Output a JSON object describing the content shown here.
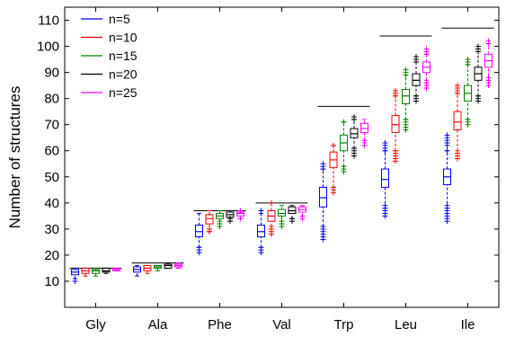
{
  "chart_data": {
    "type": "box",
    "ylabel": "Number of structures",
    "xlabel": "",
    "title": "",
    "ylim": [
      0,
      115
    ],
    "yticks": [
      10,
      20,
      30,
      40,
      50,
      60,
      70,
      80,
      90,
      100,
      110
    ],
    "grid": false,
    "legend_position": "top-left",
    "categories": [
      "Gly",
      "Ala",
      "Phe",
      "Val",
      "Trp",
      "Leu",
      "Ile"
    ],
    "series": [
      {
        "name": "n=5",
        "color": "#0000ff",
        "boxes": [
          {
            "whisker_low": 11,
            "q1": 12.5,
            "median": 13.5,
            "q3": 14.5,
            "whisker_high": 15,
            "outliers": [
              10
            ]
          },
          {
            "whisker_low": 12,
            "q1": 13.5,
            "median": 14.5,
            "q3": 15.5,
            "whisker_high": 16,
            "outliers": []
          },
          {
            "whisker_low": 23,
            "q1": 27,
            "median": 29,
            "q3": 31.5,
            "whisker_high": 36,
            "outliers": [
              21,
              22,
              23
            ]
          },
          {
            "whisker_low": 23,
            "q1": 27,
            "median": 29,
            "q3": 31.5,
            "whisker_high": 36,
            "outliers": [
              21,
              22,
              23,
              37
            ]
          },
          {
            "whisker_low": 31,
            "q1": 38.5,
            "median": 42,
            "q3": 46,
            "whisker_high": 53,
            "outliers": [
              26,
              27,
              28,
              29,
              30,
              31,
              53,
              54,
              55
            ]
          },
          {
            "whisker_low": 38,
            "q1": 46,
            "median": 49,
            "q3": 53,
            "whisker_high": 60,
            "outliers": [
              35,
              36,
              37,
              38,
              39,
              60,
              61,
              62,
              63
            ]
          },
          {
            "whisker_low": 38,
            "q1": 47,
            "median": 50,
            "q3": 53,
            "whisker_high": 60,
            "outliers": [
              33,
              34,
              35,
              36,
              37,
              38,
              39,
              60,
              62,
              63,
              64,
              65,
              66
            ]
          }
        ]
      },
      {
        "name": "n=10",
        "color": "#ff0000",
        "boxes": [
          {
            "whisker_low": 12,
            "q1": 13,
            "median": 14,
            "q3": 15,
            "whisker_high": 15,
            "outliers": []
          },
          {
            "whisker_low": 13,
            "q1": 14,
            "median": 15,
            "q3": 16,
            "whisker_high": 16,
            "outliers": []
          },
          {
            "whisker_low": 29,
            "q1": 32,
            "median": 34,
            "q3": 35.5,
            "whisker_high": 37,
            "outliers": [
              29,
              30
            ]
          },
          {
            "whisker_low": 31,
            "q1": 33,
            "median": 35,
            "q3": 37,
            "whisker_high": 40,
            "outliers": [
              28,
              29,
              30,
              40
            ]
          },
          {
            "whisker_low": 46,
            "q1": 53.5,
            "median": 56.5,
            "q3": 59.5,
            "whisker_high": 62,
            "outliers": [
              44,
              45,
              46,
              62
            ]
          },
          {
            "whisker_low": 60,
            "q1": 67,
            "median": 70,
            "q3": 73.5,
            "whisker_high": 81,
            "outliers": [
              56,
              57,
              58,
              59,
              60,
              81,
              82,
              83
            ]
          },
          {
            "whisker_low": 60,
            "q1": 68,
            "median": 71,
            "q3": 75,
            "whisker_high": 82,
            "outliers": [
              57,
              58,
              59,
              82,
              83,
              84,
              85
            ]
          }
        ]
      },
      {
        "name": "n=15",
        "color": "#008000",
        "boxes": [
          {
            "whisker_low": 12,
            "q1": 13,
            "median": 14,
            "q3": 14.5,
            "whisker_high": 15,
            "outliers": []
          },
          {
            "whisker_low": 14,
            "q1": 15,
            "median": 15.5,
            "q3": 16,
            "whisker_high": 16,
            "outliers": []
          },
          {
            "whisker_low": 32,
            "q1": 34,
            "median": 35,
            "q3": 36,
            "whisker_high": 37,
            "outliers": [
              31,
              32,
              33
            ]
          },
          {
            "whisker_low": 32,
            "q1": 35,
            "median": 36,
            "q3": 37.5,
            "whisker_high": 39,
            "outliers": [
              31,
              32,
              33
            ]
          },
          {
            "whisker_low": 54,
            "q1": 60,
            "median": 63,
            "q3": 66,
            "whisker_high": 71,
            "outliers": [
              52,
              53,
              54,
              71
            ]
          },
          {
            "whisker_low": 72,
            "q1": 78,
            "median": 81,
            "q3": 83.5,
            "whisker_high": 89,
            "outliers": [
              68,
              69,
              70,
              71,
              72,
              89,
              90,
              91
            ]
          },
          {
            "whisker_low": 72,
            "q1": 79,
            "median": 82,
            "q3": 85,
            "whisker_high": 93,
            "outliers": [
              70,
              71,
              72,
              93,
              94,
              95
            ]
          }
        ]
      },
      {
        "name": "n=20",
        "color": "#000000",
        "boxes": [
          {
            "whisker_low": 13,
            "q1": 13.5,
            "median": 14,
            "q3": 15,
            "whisker_high": 15,
            "outliers": []
          },
          {
            "whisker_low": 15,
            "q1": 15,
            "median": 16,
            "q3": 16.5,
            "whisker_high": 17,
            "outliers": []
          },
          {
            "whisker_low": 33,
            "q1": 34.5,
            "median": 35.5,
            "q3": 36.5,
            "whisker_high": 37,
            "outliers": [
              33,
              34
            ]
          },
          {
            "whisker_low": 34,
            "q1": 36,
            "median": 37,
            "q3": 38.5,
            "whisker_high": 39,
            "outliers": [
              33,
              34
            ]
          },
          {
            "whisker_low": 61,
            "q1": 65,
            "median": 66.5,
            "q3": 68.5,
            "whisker_high": 72,
            "outliers": [
              58,
              59,
              60,
              61,
              72,
              73
            ]
          },
          {
            "whisker_low": 81,
            "q1": 85,
            "median": 87,
            "q3": 89.5,
            "whisker_high": 94,
            "outliers": [
              79,
              80,
              81,
              94,
              95,
              96
            ]
          },
          {
            "whisker_low": 81,
            "q1": 87,
            "median": 89.5,
            "q3": 92,
            "whisker_high": 98,
            "outliers": [
              79,
              80,
              81,
              98,
              99,
              100
            ]
          }
        ]
      },
      {
        "name": "n=25",
        "color": "#ff00ff",
        "boxes": [
          {
            "whisker_low": 14,
            "q1": 14,
            "median": 14.5,
            "q3": 15,
            "whisker_high": 15,
            "outliers": []
          },
          {
            "whisker_low": 15,
            "q1": 15.5,
            "median": 16,
            "q3": 16.5,
            "whisker_high": 17,
            "outliers": []
          },
          {
            "whisker_low": 34,
            "q1": 35,
            "median": 36,
            "q3": 36.5,
            "whisker_high": 37,
            "outliers": [
              34,
              37
            ]
          },
          {
            "whisker_low": 35,
            "q1": 36.5,
            "median": 37.5,
            "q3": 38.5,
            "whisker_high": 39,
            "outliers": [
              34,
              35
            ]
          },
          {
            "whisker_low": 64,
            "q1": 67,
            "median": 68.5,
            "q3": 70.5,
            "whisker_high": 72,
            "outliers": [
              62,
              63,
              64
            ]
          },
          {
            "whisker_low": 87,
            "q1": 90,
            "median": 92,
            "q3": 94,
            "whisker_high": 97,
            "outliers": [
              84,
              85,
              86,
              97,
              98,
              99
            ]
          },
          {
            "whisker_low": 87,
            "q1": 92,
            "median": 94.5,
            "q3": 97,
            "whisker_high": 101,
            "outliers": [
              85,
              86,
              87,
              88,
              101,
              102
            ]
          }
        ]
      }
    ],
    "reference_lines": [
      {
        "from_category": "Gly",
        "to_category": "Gly",
        "value": 15
      },
      {
        "from_category": "Ala",
        "to_category": "Ala",
        "value": 17
      },
      {
        "from_category": "Phe",
        "to_category": "Phe",
        "value": 37
      },
      {
        "from_category": "Val",
        "to_category": "Val",
        "value": 40
      },
      {
        "from_category": "Trp",
        "to_category": "Trp",
        "value": 77
      },
      {
        "from_category": "Leu",
        "to_category": "Leu",
        "value": 104
      },
      {
        "from_category": "Ile",
        "to_category": "Ile",
        "value": 107
      }
    ]
  }
}
